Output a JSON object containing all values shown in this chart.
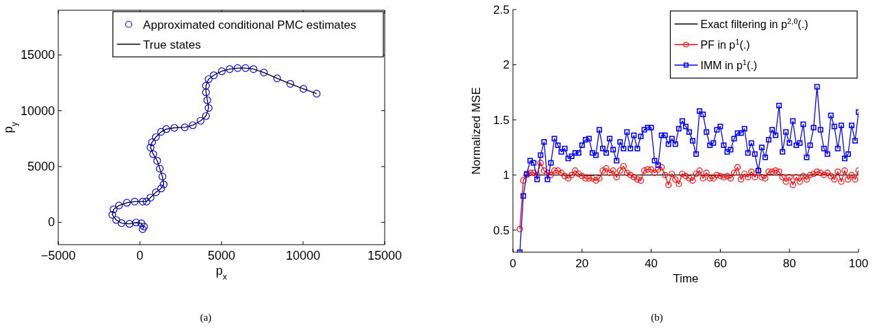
{
  "chart_data": [
    {
      "type": "scatter",
      "xlabel": "p$_{x}$",
      "ylabel": "p$_{y}$",
      "annotations": [
        "(a)"
      ],
      "legend": "top right",
      "xlim": [
        -5000,
        15000
      ],
      "xticks": [
        {
          "value": -5000,
          "label": "−5000"
        },
        0,
        5000,
        10000,
        15000
      ],
      "ylim": [
        -2000,
        19000
      ],
      "yticks": [
        0,
        5000,
        10000,
        15000
      ],
      "series": [
        {
          "name": "Approximated conditional PMC estimates",
          "type": "scatter",
          "marker": "circle",
          "color": "#0000ff",
          "x": [
            170,
            250,
            90,
            -230,
            -640,
            -1120,
            -1450,
            -1690,
            -1610,
            -1280,
            -800,
            -320,
            170,
            410,
            650,
            980,
            1300,
            1460,
            1380,
            1220,
            1060,
            820,
            650,
            740,
            980,
            1300,
            1620,
            2110,
            2750,
            3240,
            3720,
            4050,
            4210,
            4130,
            4050,
            4050,
            4210,
            4530,
            5020,
            5500,
            5990,
            6470,
            6960,
            7600,
            8410,
            9220,
            10020,
            10830
          ],
          "values": [
            -610,
            -380,
            -90,
            -20,
            -140,
            -70,
            210,
            680,
            1160,
            1510,
            1750,
            1860,
            1860,
            1860,
            2220,
            2690,
            3040,
            3400,
            4100,
            4810,
            5520,
            6110,
            6700,
            7170,
            7640,
            8110,
            8350,
            8470,
            8510,
            8700,
            9100,
            9530,
            10240,
            10940,
            11650,
            12240,
            12830,
            13180,
            13540,
            13730,
            13820,
            13820,
            13730,
            13420,
            12900,
            12410,
            11960,
            11530
          ]
        },
        {
          "name": "True states",
          "type": "line",
          "color": "#000000",
          "x": [
            170,
            250,
            90,
            -230,
            -640,
            -1120,
            -1450,
            -1690,
            -1610,
            -1280,
            -800,
            -320,
            170,
            410,
            650,
            980,
            1300,
            1460,
            1380,
            1220,
            1060,
            820,
            650,
            740,
            980,
            1300,
            1620,
            2110,
            2750,
            3240,
            3720,
            4050,
            4210,
            4130,
            4050,
            4050,
            4210,
            4530,
            5020,
            5500,
            5990,
            6470,
            6960,
            7600,
            8410,
            9220,
            10020,
            10830
          ],
          "values": [
            -610,
            -380,
            -90,
            -20,
            -140,
            -70,
            210,
            680,
            1160,
            1510,
            1750,
            1860,
            1860,
            1860,
            2220,
            2690,
            3040,
            3400,
            4100,
            4810,
            5520,
            6110,
            6700,
            7170,
            7640,
            8110,
            8350,
            8470,
            8510,
            8700,
            9100,
            9530,
            10240,
            10940,
            11650,
            12240,
            12830,
            13180,
            13540,
            13730,
            13820,
            13820,
            13730,
            13420,
            12900,
            12410,
            11960,
            11530
          ]
        }
      ]
    },
    {
      "type": "line",
      "xlabel": "Time",
      "ylabel": "Normalized MSE",
      "annotations": [
        "(b)"
      ],
      "legend": "top right",
      "xlim": [
        0,
        100
      ],
      "xticks": [
        0,
        20,
        40,
        60,
        80,
        100
      ],
      "ylim": [
        0.3,
        2.5
      ],
      "yticks": [
        0.5,
        1,
        1.5,
        2,
        2.5
      ],
      "series": [
        {
          "name": "Exact filtering in p$^{2,θ}$(.)",
          "color": "#000000",
          "x": [
            3,
            100
          ],
          "values": [
            1,
            1
          ]
        },
        {
          "name": "PF in p$^{1}$(.)",
          "color": "#ff0000",
          "marker": "circle",
          "x": [
            2,
            3,
            4,
            5,
            6,
            7,
            8,
            9,
            10,
            11,
            12,
            13,
            14,
            15,
            16,
            17,
            18,
            19,
            20,
            21,
            22,
            23,
            24,
            25,
            26,
            27,
            28,
            29,
            30,
            31,
            32,
            33,
            34,
            35,
            36,
            37,
            38,
            39,
            40,
            41,
            42,
            43,
            44,
            45,
            46,
            47,
            48,
            49,
            50,
            51,
            52,
            53,
            54,
            55,
            56,
            57,
            58,
            59,
            60,
            61,
            62,
            63,
            64,
            65,
            66,
            67,
            68,
            69,
            70,
            71,
            72,
            73,
            74,
            75,
            76,
            77,
            78,
            79,
            80,
            81,
            82,
            83,
            84,
            85,
            86,
            87,
            88,
            89,
            90,
            91,
            92,
            93,
            94,
            95,
            96,
            97,
            98,
            99,
            100
          ],
          "values": [
            0.51,
            0.95,
            1.0,
            1.02,
            1.02,
            1.0,
            1.11,
            1.04,
            1.02,
            1.0,
            1.04,
            1.04,
            1.02,
            0.99,
            0.97,
            1.0,
            1.04,
            1.01,
            0.99,
            0.97,
            0.97,
            0.97,
            0.95,
            0.97,
            1.04,
            1.06,
            1.02,
            1.04,
            0.98,
            1.04,
            1.08,
            1.02,
            1.0,
            0.98,
            0.96,
            0.95,
            1.04,
            1.05,
            1.05,
            1.02,
            1.05,
            1.07,
            1.0,
            0.91,
            1.01,
            0.96,
            0.92,
            1.01,
            0.99,
            0.97,
            0.95,
            1.01,
            1.04,
            0.97,
            1.02,
            0.97,
            0.97,
            1.0,
            0.99,
            0.98,
            0.99,
            0.97,
            1.02,
            1.07,
            0.96,
            1.01,
            0.98,
            1.03,
            0.98,
            1.04,
            0.98,
            0.97,
            1.03,
            1.03,
            1.04,
            1.03,
            0.98,
            0.94,
            0.98,
            0.91,
            0.98,
            0.94,
            0.99,
            0.96,
            1.0,
            1.01,
            1.03,
            1.02,
            1.0,
            1.02,
            0.99,
            0.96,
            1.03,
            0.94,
            1.04,
            0.96,
            1.0,
            0.96,
            1.04
          ]
        },
        {
          "name": "IMM in p$^{1}$(.)",
          "color": "#0000ff",
          "marker": "square",
          "x": [
            2,
            3,
            4,
            5,
            6,
            7,
            8,
            9,
            10,
            11,
            12,
            13,
            14,
            15,
            16,
            17,
            18,
            19,
            20,
            21,
            22,
            23,
            24,
            25,
            26,
            27,
            28,
            29,
            30,
            31,
            32,
            33,
            34,
            35,
            36,
            37,
            38,
            39,
            40,
            41,
            42,
            43,
            44,
            45,
            46,
            47,
            48,
            49,
            50,
            51,
            52,
            53,
            54,
            55,
            56,
            57,
            58,
            59,
            60,
            61,
            62,
            63,
            64,
            65,
            66,
            67,
            68,
            69,
            70,
            71,
            72,
            73,
            74,
            75,
            76,
            77,
            78,
            79,
            80,
            81,
            82,
            83,
            84,
            85,
            86,
            87,
            88,
            89,
            90,
            91,
            92,
            93,
            94,
            95,
            96,
            97,
            98,
            99,
            100
          ],
          "values": [
            0.3,
            0.81,
            1.01,
            1.13,
            1.11,
            0.96,
            1.18,
            1.3,
            0.96,
            1.11,
            1.33,
            1.27,
            1.21,
            1.24,
            1.15,
            1.17,
            1.2,
            1.2,
            1.27,
            1.32,
            1.33,
            1.2,
            1.18,
            1.41,
            1.24,
            1.2,
            1.33,
            1.23,
            1.13,
            1.3,
            1.24,
            1.39,
            1.24,
            1.36,
            1.24,
            1.35,
            1.41,
            1.43,
            1.43,
            1.13,
            1.09,
            1.36,
            1.36,
            1.28,
            1.33,
            1.28,
            1.42,
            1.49,
            1.44,
            1.39,
            1.31,
            1.19,
            1.58,
            1.55,
            1.39,
            1.27,
            1.29,
            1.41,
            1.44,
            1.27,
            1.21,
            1.23,
            1.33,
            1.38,
            1.38,
            1.42,
            1.2,
            1.29,
            1.19,
            1.04,
            1.25,
            1.16,
            1.32,
            1.41,
            1.36,
            1.63,
            1.21,
            1.39,
            1.29,
            1.49,
            1.27,
            1.29,
            1.46,
            1.16,
            1.27,
            1.43,
            1.8,
            1.41,
            1.24,
            1.19,
            1.54,
            1.44,
            1.24,
            1.45,
            1.15,
            1.19,
            1.45,
            1.31,
            1.57
          ]
        }
      ]
    }
  ]
}
